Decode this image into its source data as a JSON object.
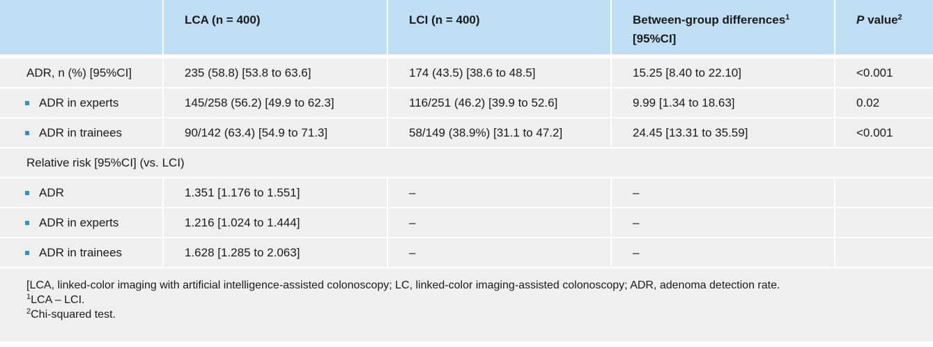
{
  "table": {
    "header": [
      {
        "text": "LCA (n = 400)"
      },
      {
        "text": "LCI (n = 400)"
      },
      {
        "text": "Between-group differences",
        "sup": "1",
        "line2": "[95%CI]"
      },
      {
        "italic": "P",
        "text": " value",
        "sup": "2"
      }
    ],
    "rows": [
      {
        "label": "ADR, n (%) [95%CI]",
        "cells": [
          "235 (58.8) [53.8 to 63.6]",
          "174 (43.5) [38.6 to 48.5]",
          "15.25 [8.40 to 22.10]",
          "<0.001"
        ]
      },
      {
        "label": "ADR in experts",
        "bullet": true,
        "cells": [
          "145/258 (56.2) [49.9 to 62.3]",
          "116/251 (46.2) [39.9 to 52.6]",
          "9.99 [1.34 to 18.63]",
          "0.02"
        ]
      },
      {
        "label": "ADR in trainees",
        "bullet": true,
        "cells": [
          "90/142 (63.4) [54.9 to 71.3]",
          "58/149 (38.9%) [31.1 to 47.2]",
          "24.45 [13.31 to 35.59]",
          "<0.001"
        ]
      },
      {
        "label": "Relative risk [95%CI] (vs. LCI)"
      },
      {
        "label": "ADR",
        "bullet": true,
        "cells": [
          "1.351 [1.176 to 1.551]",
          "–",
          "–"
        ]
      },
      {
        "label": "ADR in experts",
        "bullet": true,
        "cells": [
          "1.216 [1.024 to 1.444]",
          "–",
          "–"
        ]
      },
      {
        "label": "ADR in trainees",
        "bullet": true,
        "cells": [
          "1.628 [1.285 to 2.063]",
          "–",
          "–"
        ]
      }
    ],
    "notes": [
      {
        "text": "[LCA, linked-color imaging with artificial intelligence-assisted colonoscopy; LC, linked-color imaging-assisted colonoscopy; ADR, adenoma detection rate."
      },
      {
        "sup": "1",
        "text": "LCA – LCI."
      },
      {
        "sup": "2",
        "text": "Chi-squared test."
      }
    ]
  }
}
